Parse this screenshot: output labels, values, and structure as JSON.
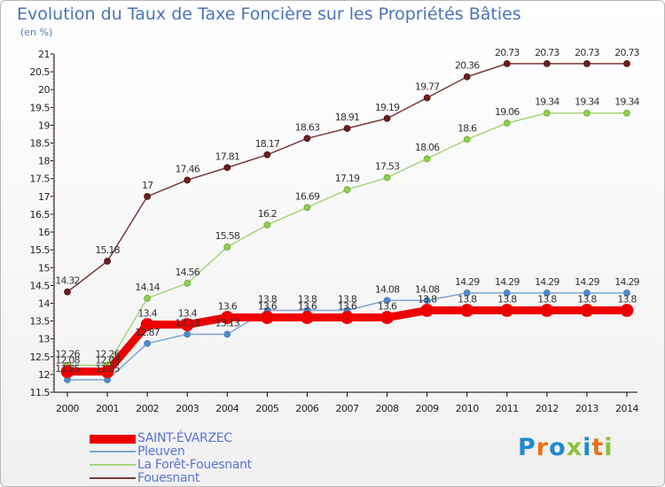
{
  "title": "Evolution du Taux de Taxe Foncière sur les Propriétés Bâties",
  "subtitle": "(en %)",
  "logo": {
    "letters": [
      "P",
      "r",
      "o",
      "x",
      "i",
      "t",
      "i"
    ],
    "colors": [
      "#1f8ad0",
      "#e8731c",
      "#1f8ad0",
      "#8cc13b",
      "#1f8ad0",
      "#e8731c",
      "#8cc13b"
    ]
  },
  "chart_data": {
    "type": "line",
    "x": [
      2000,
      2001,
      2002,
      2003,
      2004,
      2005,
      2006,
      2007,
      2008,
      2009,
      2010,
      2011,
      2012,
      2013,
      2014
    ],
    "ylim": [
      11.5,
      21
    ],
    "yticks": [
      "11.5",
      "12",
      "12.5",
      "13",
      "13.5",
      "14",
      "14.5",
      "15",
      "15.5",
      "16",
      "16.5",
      "17",
      "17.5",
      "18",
      "18.5",
      "19",
      "19.5",
      "20",
      "20.5",
      "21"
    ],
    "grid": false,
    "legend_position": "bottom-left",
    "series": [
      {
        "name": "SAINT-ÉVARZEC",
        "color": "#ee0000",
        "values": [
          12.08,
          12.08,
          13.4,
          13.4,
          13.6,
          13.6,
          13.6,
          13.6,
          13.6,
          13.8,
          13.8,
          13.8,
          13.8,
          13.8,
          13.8
        ],
        "labels": [
          "12.08",
          "12.08",
          "13.4",
          "13.4",
          "13.6",
          "13.6",
          "13.6",
          "13.6",
          "13.6",
          "13.8",
          "13.8",
          "13.8",
          "13.8",
          "13.8",
          "13.8"
        ]
      },
      {
        "name": "Pleuven",
        "color": "#7ea6cf",
        "values": [
          11.85,
          11.85,
          12.87,
          13.13,
          13.13,
          13.8,
          13.8,
          13.8,
          14.08,
          14.08,
          14.29,
          14.29,
          14.29,
          14.29,
          14.29
        ],
        "labels": [
          "11.85",
          "11.85",
          "12.87",
          "13.13",
          "13.13",
          "13.8",
          "13.8",
          "13.8",
          "14.08",
          "14.08",
          "14.29",
          "14.29",
          "14.29",
          "14.29",
          "14.29"
        ]
      },
      {
        "name": "La Forêt-Fouesnant",
        "color": "#a6d67a",
        "values": [
          12.26,
          12.26,
          14.14,
          14.56,
          15.58,
          16.2,
          16.69,
          17.19,
          17.53,
          18.06,
          18.6,
          19.06,
          19.34,
          19.34,
          19.34
        ],
        "labels": [
          "12.26",
          "12.26",
          "14.14",
          "14.56",
          "15.58",
          "16.2",
          "16.69",
          "17.19",
          "17.53",
          "18.06",
          "18.6",
          "19.06",
          "19.34",
          "19.34",
          "19.34"
        ]
      },
      {
        "name": "Fouesnant",
        "color": "#7a3a3a",
        "values": [
          14.32,
          15.18,
          17,
          17.46,
          17.81,
          18.17,
          18.63,
          18.91,
          19.19,
          19.77,
          20.36,
          20.73,
          20.73,
          20.73,
          20.73
        ],
        "labels": [
          "14.32",
          "15.18",
          "17",
          "17.46",
          "17.81",
          "18.17",
          "18.63",
          "18.91",
          "19.19",
          "19.77",
          "20.36",
          "20.73",
          "20.73",
          "20.73",
          "20.73"
        ]
      }
    ]
  }
}
